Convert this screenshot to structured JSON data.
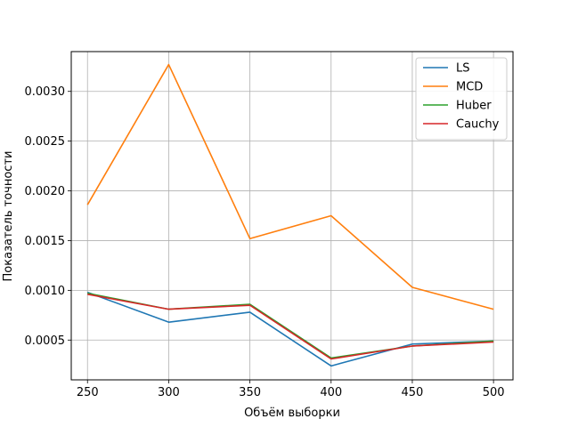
{
  "chart_data": {
    "type": "line",
    "title": "",
    "xlabel": "Объём выборки",
    "ylabel": "Показатель точности",
    "x": [
      250,
      300,
      350,
      400,
      450,
      500
    ],
    "xlim": [
      240,
      512
    ],
    "ylim": [
      0.0001,
      0.0034
    ],
    "xticks": [
      250,
      300,
      350,
      400,
      450,
      500
    ],
    "yticks": [
      0.0005,
      0.001,
      0.0015,
      0.002,
      0.0025,
      0.003
    ],
    "ytick_labels": [
      "0.0005",
      "0.0010",
      "0.0015",
      "0.0020",
      "0.0025",
      "0.0030"
    ],
    "grid": true,
    "legend_position": "top-right",
    "series": [
      {
        "name": "LS",
        "color": "#1f77b4",
        "values": [
          0.00098,
          0.00068,
          0.00078,
          0.00024,
          0.00046,
          0.00049
        ]
      },
      {
        "name": "MCD",
        "color": "#ff7f0e",
        "values": [
          0.00186,
          0.00327,
          0.00152,
          0.00175,
          0.00103,
          0.00081
        ]
      },
      {
        "name": "Huber",
        "color": "#2ca02c",
        "values": [
          0.00097,
          0.00081,
          0.00086,
          0.00032,
          0.00044,
          0.00049
        ]
      },
      {
        "name": "Cauchy",
        "color": "#d62728",
        "values": [
          0.00096,
          0.00081,
          0.00085,
          0.00031,
          0.00044,
          0.00048
        ]
      }
    ]
  }
}
